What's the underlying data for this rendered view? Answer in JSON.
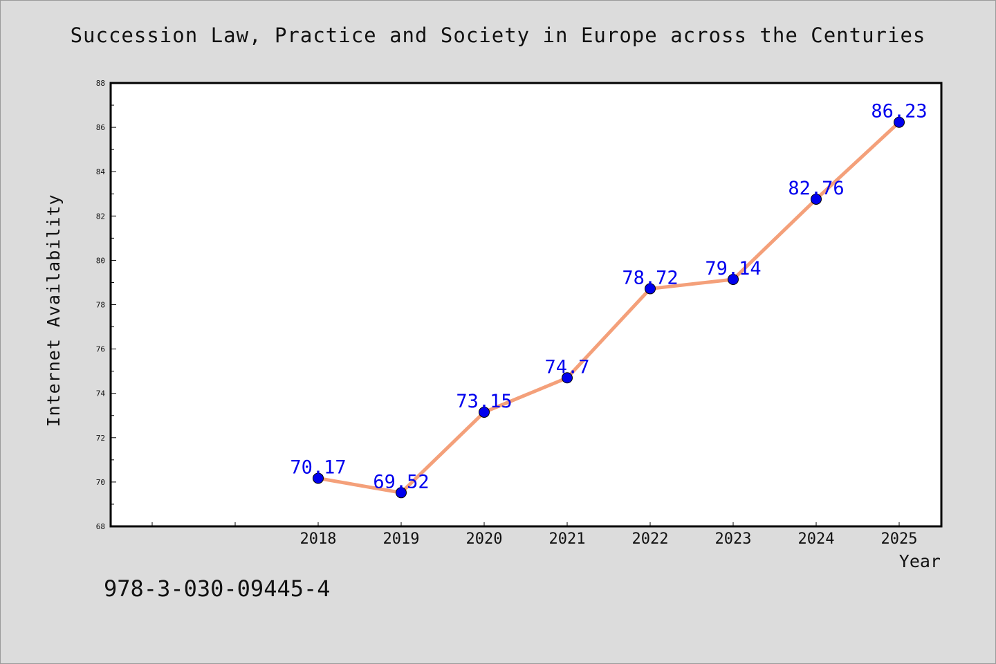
{
  "chart_data": {
    "type": "line",
    "title": "Succession Law, Practice and Society in Europe across the Centuries",
    "xlabel": "Year",
    "ylabel": "Internet Availability",
    "x": [
      "2018",
      "2019",
      "2020",
      "2021",
      "2022",
      "2023",
      "2024",
      "2025"
    ],
    "series": [
      {
        "values": [
          70.17,
          69.52,
          73.15,
          74.7,
          78.72,
          79.14,
          82.76,
          86.23
        ]
      }
    ],
    "data_labels": [
      "70.17",
      "69.52",
      "73.15",
      "74.7",
      "78.72",
      "79.14",
      "82.76",
      "86.23"
    ],
    "x_tick_labels": [
      "2018",
      "2019",
      "2020",
      "2021",
      "2022",
      "2023",
      "2024",
      "2025"
    ],
    "y_tick_labels": [
      "68",
      "70",
      "72",
      "74",
      "76",
      "78",
      "80",
      "82",
      "84",
      "86",
      "88"
    ],
    "ylim": [
      68,
      88
    ],
    "grid": false,
    "line_color": "#f4a07a",
    "marker_color": "#0000ee",
    "label_color": "#0000ee"
  },
  "footer": {
    "isbn": "978-3-030-09445-4"
  }
}
